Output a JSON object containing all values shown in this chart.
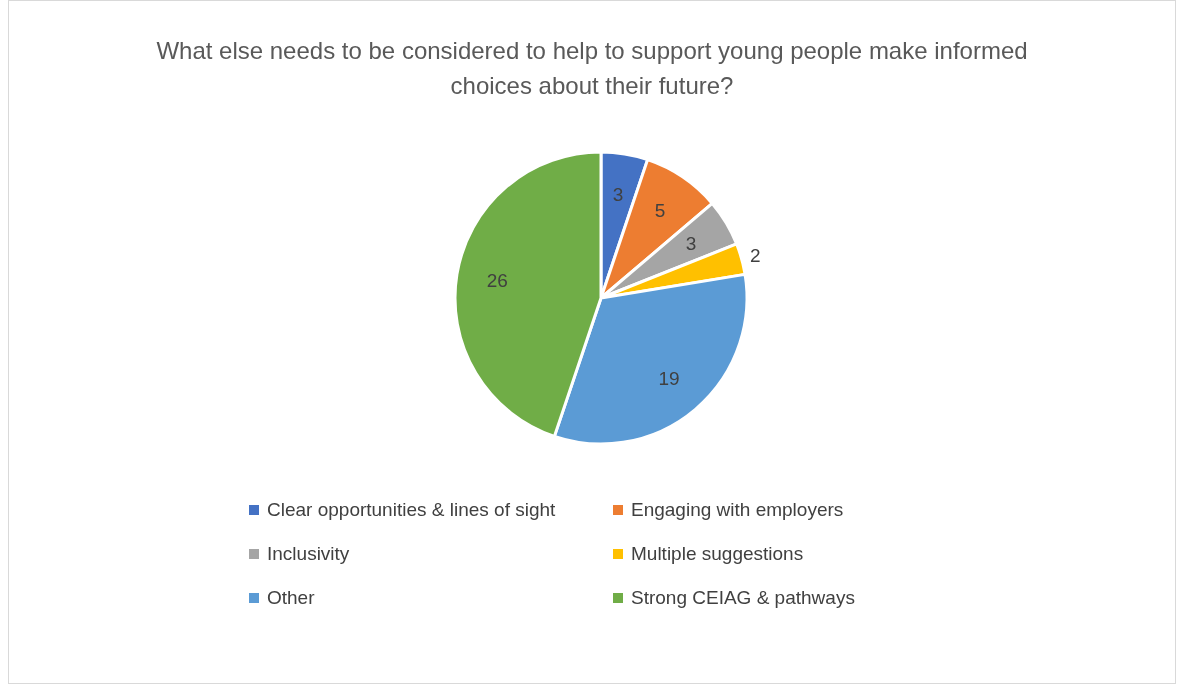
{
  "chart_data": {
    "type": "pie",
    "title": "What else needs to be considered to help to support young people make informed choices about their future?",
    "categories": [
      "Clear opportunities & lines of sight",
      "Engaging with employers",
      "Inclusivity",
      "Multiple suggestions",
      "Other",
      "Strong CEIAG & pathways"
    ],
    "values": [
      3,
      5,
      3,
      2,
      19,
      26
    ],
    "colors": [
      "#4472c4",
      "#ed7d31",
      "#a5a5a5",
      "#ffc000",
      "#5b9bd5",
      "#70ad47"
    ],
    "data_labels": true,
    "legend": "bottom"
  }
}
